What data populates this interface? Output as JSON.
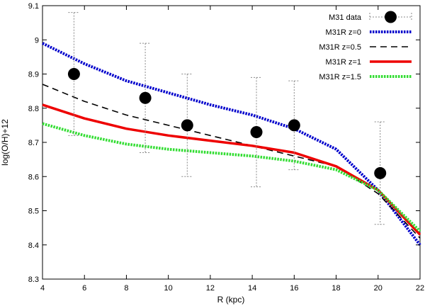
{
  "chart_data": {
    "type": "line",
    "title": "",
    "xlabel": "R (kpc)",
    "ylabel": "log(O/H)+12",
    "xlim": [
      4,
      22
    ],
    "ylim": [
      8.3,
      9.1
    ],
    "grid": false,
    "legend_position": "top-right",
    "xticks": [
      4,
      6,
      8,
      10,
      12,
      14,
      16,
      18,
      20,
      22
    ],
    "xtick_labels": [
      "4",
      "6",
      "8",
      "10",
      "12",
      "14",
      "16",
      "18",
      "20",
      "22"
    ],
    "yticks": [
      8.3,
      8.4,
      8.5,
      8.6,
      8.7,
      8.8,
      8.9,
      9.0,
      9.1
    ],
    "ytick_labels": [
      "8.3",
      "8.4",
      "8.5",
      "8.6",
      "8.7",
      "8.8",
      "8.9",
      "9",
      "9.1"
    ],
    "series": [
      {
        "name": "M31 data",
        "kind": "points-errorbars",
        "color": "#000000",
        "x": [
          5.5,
          8.9,
          10.9,
          14.2,
          16.0,
          20.1
        ],
        "y": [
          8.9,
          8.83,
          8.75,
          8.73,
          8.75,
          8.61
        ],
        "y_low": [
          8.72,
          8.67,
          8.6,
          8.57,
          8.62,
          8.46
        ],
        "y_high": [
          9.08,
          8.99,
          8.9,
          8.89,
          8.88,
          8.76
        ]
      },
      {
        "name": "M31R z=0",
        "kind": "line",
        "style": "dotted",
        "color": "#0000cc",
        "x": [
          4,
          6,
          8,
          10,
          12,
          14,
          16,
          18,
          20,
          22
        ],
        "y": [
          8.99,
          8.93,
          8.88,
          8.845,
          8.81,
          8.78,
          8.74,
          8.68,
          8.56,
          8.4
        ]
      },
      {
        "name": "M31R z=0.5",
        "kind": "line",
        "style": "dashed",
        "color": "#000000",
        "x": [
          4,
          6,
          8,
          10,
          12,
          14,
          16,
          18,
          20,
          22
        ],
        "y": [
          8.87,
          8.82,
          8.78,
          8.75,
          8.72,
          8.69,
          8.66,
          8.63,
          8.55,
          8.42
        ]
      },
      {
        "name": "M31R z=1",
        "kind": "line",
        "style": "solid",
        "color": "#ee0000",
        "x": [
          4,
          6,
          8,
          10,
          12,
          14,
          16,
          18,
          20,
          22
        ],
        "y": [
          8.81,
          8.77,
          8.74,
          8.72,
          8.705,
          8.69,
          8.67,
          8.63,
          8.56,
          8.43
        ]
      },
      {
        "name": "M31R z=1.5",
        "kind": "line",
        "style": "dotted",
        "color": "#33dd33",
        "x": [
          4,
          6,
          8,
          10,
          12,
          14,
          16,
          18,
          20,
          22
        ],
        "y": [
          8.755,
          8.72,
          8.695,
          8.68,
          8.67,
          8.66,
          8.645,
          8.62,
          8.56,
          8.44
        ]
      }
    ]
  }
}
